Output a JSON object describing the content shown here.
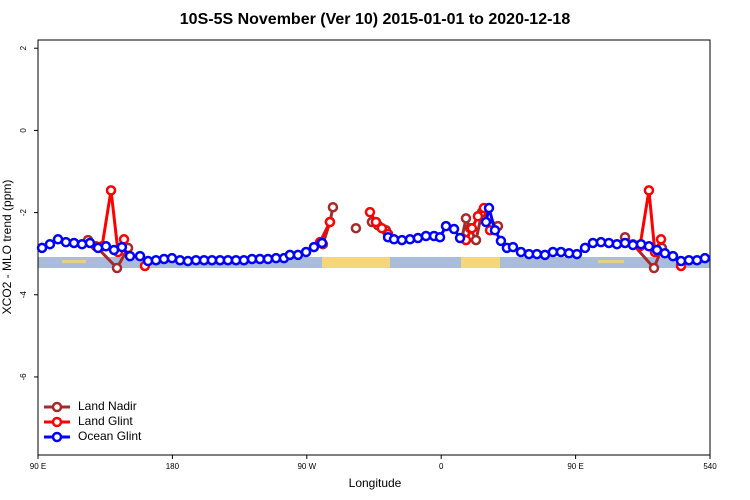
{
  "chart_data": {
    "type": "line",
    "title": "10S-5S November (Ver 10)   2015-01-01 to 2020-12-18",
    "x_label": "Longitude",
    "y_label": "XCO2 - MLO trend (ppm)",
    "xlim": [
      90,
      540
    ],
    "xticks": [
      {
        "value": 90,
        "label": "90 E"
      },
      180,
      {
        "value": 270,
        "label": "90 W"
      },
      {
        "value": 360,
        "label": "0"
      },
      {
        "value": 450,
        "label": "90 E"
      },
      540
    ],
    "ylim": [
      -7.9,
      2.2
    ],
    "yticks": [
      2,
      0,
      -2,
      -4,
      -6
    ],
    "legend": "bottom-left",
    "series": [
      {
        "name": "Land Nadir",
        "color": "#a52a2a",
        "x": [
          123.5,
          128.8,
          142.9,
          150.3,
          null,
          280.8,
          285.5,
          287.5,
          null,
          302.9,
          null,
          313.6,
          317.7,
          323.0,
          null,
          373.9,
          376.6,
          379.3,
          383.3,
          387.3,
          394.0,
          398.0,
          null,
          483.1,
          488.4,
          502.5,
          507.8
        ],
        "values": [
          -2.67,
          -2.82,
          -3.35,
          -2.86,
          null,
          -2.77,
          -2.23,
          -1.87,
          null,
          -2.38,
          null,
          -2.23,
          -2.31,
          -2.43,
          null,
          -2.62,
          -2.14,
          -2.38,
          -2.67,
          -1.99,
          -2.33,
          -2.33,
          null,
          -2.6,
          -2.77,
          -3.35,
          -2.86
        ]
      },
      {
        "name": "Land Glint",
        "color": "#ff0000",
        "x": [
          132.9,
          138.9,
          143.6,
          147.6,
          null,
          161.6,
          null,
          278.8,
          285.5,
          null,
          312.3,
          316.3,
          320.3,
          324.4,
          null,
          376.6,
          380.6,
          384.6,
          388.6,
          392.7,
          null,
          493.1,
          499.1,
          503.1,
          507.2,
          null,
          520.6
        ],
        "values": [
          -2.82,
          -1.46,
          -2.96,
          -2.65,
          null,
          -3.3,
          null,
          -2.72,
          -2.23,
          null,
          -1.99,
          -2.23,
          -2.38,
          -2.52,
          null,
          -2.67,
          -2.38,
          -2.09,
          -1.89,
          -2.43,
          null,
          -2.82,
          -1.46,
          -2.96,
          -2.65,
          null,
          -3.3
        ]
      },
      {
        "name": "Ocean Glint",
        "color": "#0000ff",
        "x": [
          92.7,
          98.0,
          103.4,
          108.7,
          114.1,
          119.5,
          124.8,
          130.2,
          135.5,
          140.9,
          146.2,
          151.6,
          158.3,
          163.7,
          169.0,
          174.4,
          179.7,
          185.1,
          190.4,
          195.8,
          201.2,
          206.5,
          211.9,
          217.2,
          222.6,
          227.9,
          233.3,
          238.6,
          244.0,
          249.4,
          254.7,
          258.7,
          264.1,
          269.5,
          274.8,
          280.2,
          null,
          324.4,
          328.4,
          333.7,
          339.1,
          344.4,
          349.8,
          355.2,
          359.2,
          363.2,
          368.6,
          372.6,
          null,
          390.0,
          392.0,
          396.0,
          400.0,
          404.0,
          408.1,
          413.4,
          418.8,
          424.1,
          429.5,
          434.8,
          440.2,
          445.6,
          450.9,
          456.3,
          461.6,
          467.0,
          472.3,
          477.7,
          483.1,
          488.4,
          493.8,
          499.1,
          504.5,
          509.8,
          515.2,
          520.6,
          525.9,
          531.3,
          536.6
        ],
        "values": [
          -2.86,
          -2.77,
          -2.65,
          -2.72,
          -2.74,
          -2.77,
          -2.74,
          -2.86,
          -2.82,
          -2.91,
          -2.84,
          -3.06,
          -3.06,
          -3.18,
          -3.16,
          -3.13,
          -3.11,
          -3.16,
          -3.18,
          -3.16,
          -3.16,
          -3.16,
          -3.16,
          -3.16,
          -3.16,
          -3.16,
          -3.13,
          -3.13,
          -3.13,
          -3.11,
          -3.11,
          -3.03,
          -3.03,
          -2.96,
          -2.84,
          -2.74,
          null,
          -2.6,
          -2.65,
          -2.67,
          -2.65,
          -2.62,
          -2.57,
          -2.57,
          -2.6,
          -2.33,
          -2.4,
          -2.62,
          null,
          -2.23,
          -1.89,
          -2.43,
          -2.69,
          -2.86,
          -2.84,
          -2.96,
          -3.01,
          -3.01,
          -3.03,
          -2.96,
          -2.96,
          -2.99,
          -3.01,
          -2.86,
          -2.74,
          -2.72,
          -2.74,
          -2.77,
          -2.74,
          -2.79,
          -2.77,
          -2.82,
          -2.91,
          -2.99,
          -3.06,
          -3.18,
          -3.16,
          -3.16,
          -3.11
        ]
      }
    ]
  }
}
